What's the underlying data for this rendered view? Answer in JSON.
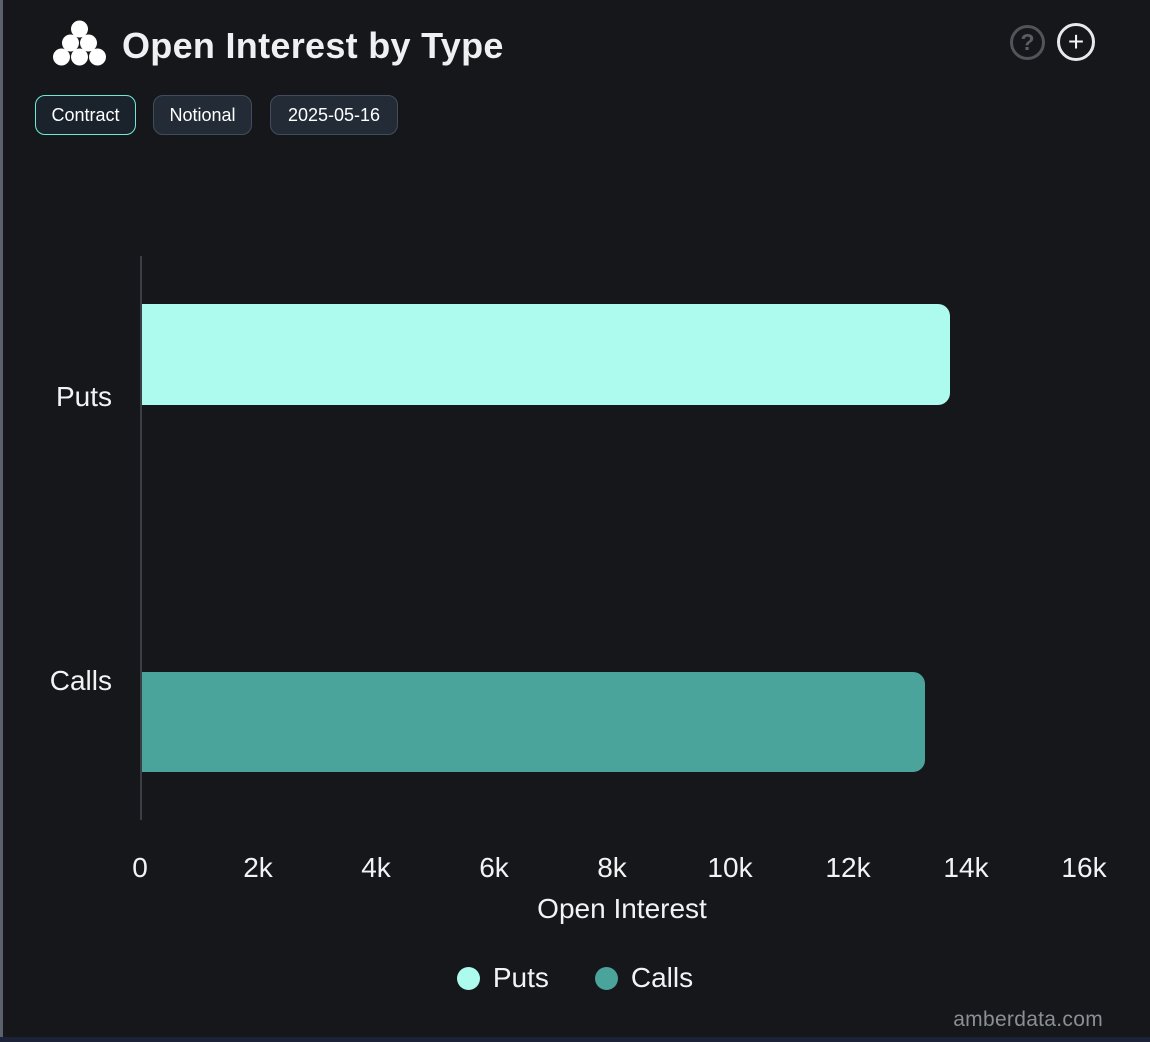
{
  "header": {
    "title": "Open Interest by Type",
    "help_icon": "?",
    "add_icon": "+",
    "logo_icon": "amberdata-dots-triangle"
  },
  "toolbar": {
    "buttons": [
      {
        "label": "Contract",
        "active": true
      },
      {
        "label": "Notional",
        "active": false
      },
      {
        "label": "2025-05-16",
        "active": false
      }
    ]
  },
  "chart_data": {
    "type": "bar",
    "orientation": "horizontal",
    "title": "Open Interest by Type",
    "categories": [
      "Puts",
      "Calls"
    ],
    "values": [
      13700,
      13270
    ],
    "xlabel": "Open Interest",
    "ylabel": "",
    "xlim": [
      0,
      16300
    ],
    "xticks": [
      "0",
      "2k",
      "4k",
      "6k",
      "8k",
      "10k",
      "12k",
      "14k",
      "16k"
    ],
    "xtick_values": [
      0,
      2000,
      4000,
      6000,
      8000,
      10000,
      12000,
      14000,
      16000
    ],
    "grid": false,
    "legend_position": "bottom",
    "series_colors": {
      "Puts": "#ACFBEE",
      "Calls": "#4BA49C"
    }
  },
  "legend": [
    {
      "label": "Puts",
      "color": "#ACFBEE"
    },
    {
      "label": "Calls",
      "color": "#4BA49C"
    }
  ],
  "footer": {
    "watermark": "amberdata.com"
  },
  "colors": {
    "background": "#16171A",
    "accent_mint": "#6FE9D6",
    "axis_line": "#3A3E45",
    "left_edge": "#5B616C",
    "bottom_edge": "#1C2237",
    "text_primary": "#F2F3F5",
    "text_muted": "#8B8E94"
  }
}
